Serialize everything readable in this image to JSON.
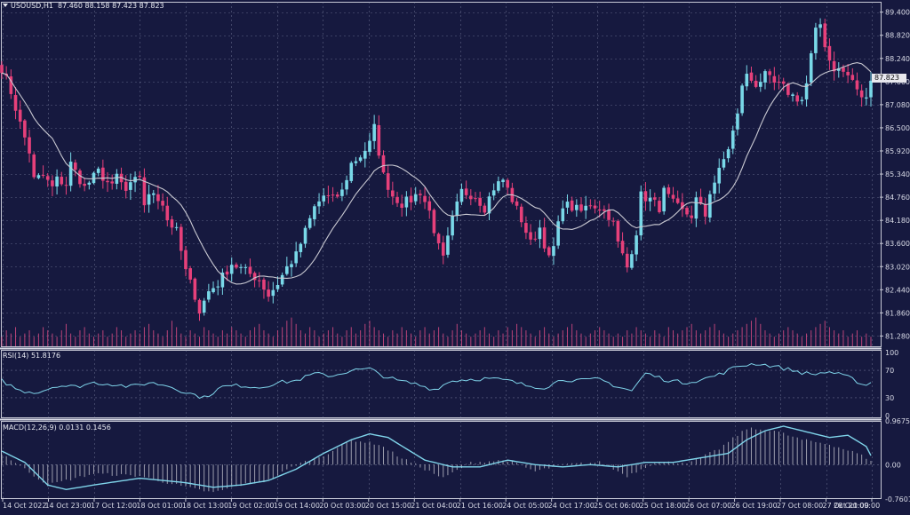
{
  "chart_data": {
    "type": "candlestick",
    "symbol": "USOUSD",
    "timeframe": "H1",
    "ohlc_readout": {
      "open": "87.460",
      "high": "88.158",
      "low": "87.423",
      "close": "87.823"
    },
    "current_price_label": "87.823",
    "price_axis": {
      "ticks": [
        "89.400",
        "88.820",
        "88.240",
        "87.660",
        "87.080",
        "86.500",
        "85.920",
        "85.340",
        "84.760",
        "84.180",
        "83.600",
        "83.020",
        "82.440",
        "81.860",
        "81.280"
      ],
      "range": [
        81.0,
        89.66
      ]
    },
    "time_axis": {
      "labels": [
        "14 Oct 2022",
        "14 Oct 23:00",
        "17 Oct 12:00",
        "18 Oct 01:00",
        "18 Oct 13:00",
        "19 Oct 02:00",
        "19 Oct 14:00",
        "20 Oct 03:00",
        "20 Oct 15:00",
        "21 Oct 04:00",
        "21 Oct 16:00",
        "24 Oct 05:00",
        "24 Oct 17:00",
        "25 Oct 06:00",
        "25 Oct 18:00",
        "26 Oct 07:00",
        "26 Oct 19:00",
        "27 Oct 08:00",
        "27 Oct 20:00",
        "28 Oct 09:00"
      ]
    },
    "close_path": [
      [
        0,
        88.0
      ],
      [
        2,
        87.4
      ],
      [
        4,
        86.6
      ],
      [
        6,
        85.9
      ],
      [
        7,
        85.2
      ],
      [
        9,
        85.3
      ],
      [
        11,
        85.0
      ],
      [
        12,
        85.2
      ],
      [
        14,
        85.1
      ],
      [
        15,
        85.6
      ],
      [
        18,
        85.0
      ],
      [
        21,
        85.4
      ],
      [
        24,
        85.0
      ],
      [
        25,
        85.3
      ],
      [
        27,
        84.9
      ],
      [
        30,
        85.3
      ],
      [
        31,
        84.6
      ],
      [
        33,
        84.9
      ],
      [
        35,
        84.6
      ],
      [
        36,
        84.2
      ],
      [
        38,
        83.9
      ],
      [
        40,
        82.9
      ],
      [
        42,
        82.3
      ],
      [
        43,
        81.9
      ],
      [
        45,
        82.4
      ],
      [
        47,
        82.6
      ],
      [
        50,
        83.1
      ],
      [
        53,
        82.9
      ],
      [
        56,
        82.7
      ],
      [
        58,
        82.3
      ],
      [
        60,
        82.6
      ],
      [
        62,
        83.0
      ],
      [
        64,
        83.3
      ],
      [
        66,
        83.9
      ],
      [
        68,
        84.5
      ],
      [
        70,
        84.8
      ],
      [
        72,
        84.7
      ],
      [
        74,
        84.9
      ],
      [
        76,
        85.6
      ],
      [
        78,
        85.8
      ],
      [
        80,
        86.1
      ],
      [
        81,
        86.5
      ],
      [
        83,
        85.3
      ],
      [
        85,
        84.8
      ],
      [
        87,
        84.6
      ],
      [
        89,
        84.7
      ],
      [
        91,
        84.9
      ],
      [
        93,
        84.4
      ],
      [
        95,
        83.5
      ],
      [
        96,
        83.2
      ],
      [
        98,
        84.2
      ],
      [
        100,
        84.9
      ],
      [
        103,
        84.8
      ],
      [
        105,
        84.5
      ],
      [
        107,
        85.0
      ],
      [
        109,
        85.2
      ],
      [
        111,
        84.7
      ],
      [
        113,
        84.2
      ],
      [
        115,
        83.6
      ],
      [
        117,
        84.0
      ],
      [
        119,
        83.2
      ],
      [
        120,
        83.5
      ],
      [
        122,
        84.6
      ],
      [
        124,
        84.5
      ],
      [
        126,
        84.4
      ],
      [
        128,
        84.6
      ],
      [
        130,
        84.5
      ],
      [
        132,
        84.3
      ],
      [
        133,
        84.1
      ],
      [
        134,
        83.6
      ],
      [
        136,
        83.0
      ],
      [
        138,
        83.9
      ],
      [
        139,
        84.8
      ],
      [
        141,
        84.7
      ],
      [
        143,
        84.5
      ],
      [
        144,
        84.9
      ],
      [
        146,
        84.6
      ],
      [
        148,
        84.4
      ],
      [
        150,
        84.3
      ],
      [
        151,
        84.7
      ],
      [
        153,
        84.3
      ],
      [
        154,
        84.9
      ],
      [
        156,
        85.4
      ],
      [
        158,
        86.0
      ],
      [
        160,
        86.8
      ],
      [
        161,
        87.6
      ],
      [
        162,
        87.8
      ],
      [
        164,
        87.6
      ],
      [
        166,
        87.8
      ],
      [
        168,
        87.6
      ],
      [
        170,
        87.5
      ],
      [
        172,
        87.3
      ],
      [
        174,
        87.2
      ],
      [
        175,
        87.6
      ],
      [
        176,
        88.3
      ],
      [
        177,
        88.9
      ],
      [
        178,
        89.1
      ],
      [
        179,
        88.6
      ],
      [
        180,
        88.2
      ],
      [
        181,
        88.0
      ],
      [
        183,
        87.9
      ],
      [
        185,
        87.7
      ],
      [
        186,
        87.4
      ],
      [
        188,
        87.2
      ],
      [
        189,
        87.8
      ]
    ],
    "volume_series": [
      3,
      5,
      4,
      6,
      3,
      4,
      5,
      3,
      4,
      6,
      5,
      4,
      3,
      5,
      7,
      4,
      3,
      5,
      6,
      4,
      3,
      4,
      5,
      3,
      4,
      6,
      5,
      3,
      4,
      5,
      4,
      6,
      7,
      5,
      4,
      3,
      5,
      8,
      6,
      4,
      3,
      5,
      4,
      3,
      6,
      5,
      4,
      3,
      5,
      4,
      6,
      5,
      4,
      3,
      5,
      6,
      7,
      5,
      4,
      3,
      5,
      6,
      8,
      9,
      7,
      5,
      4,
      6,
      5,
      3,
      4,
      5,
      6,
      4,
      3,
      5,
      6,
      4,
      5,
      7,
      8,
      6,
      5,
      4,
      3,
      5,
      4,
      6,
      5,
      4,
      3,
      5,
      6,
      4,
      5,
      6,
      4,
      3,
      5,
      7,
      5,
      4,
      3,
      4,
      5,
      6,
      4,
      3,
      5,
      4,
      6,
      5,
      7,
      6,
      5,
      4,
      3,
      5,
      6,
      4,
      3,
      4,
      5,
      6,
      7,
      5,
      4,
      3,
      4,
      5,
      6,
      5,
      4,
      3,
      4,
      3,
      5,
      4,
      6,
      5,
      4,
      3,
      5,
      4,
      3,
      6,
      5,
      4,
      5,
      6,
      7,
      5,
      4,
      5,
      6,
      7,
      5,
      4,
      3,
      4,
      5,
      6,
      7,
      8,
      9,
      7,
      5,
      4,
      3,
      4,
      5,
      6,
      5,
      4,
      3,
      4,
      5,
      6,
      7,
      8,
      6,
      5,
      4,
      5,
      3,
      4,
      5,
      3,
      4,
      3
    ],
    "rsi": {
      "header": "RSI(14) 51.8176",
      "levels": [
        "100",
        "70",
        "30",
        "0"
      ],
      "values": [
        [
          0,
          55
        ],
        [
          4,
          40
        ],
        [
          8,
          38
        ],
        [
          12,
          48
        ],
        [
          16,
          46
        ],
        [
          20,
          52
        ],
        [
          24,
          50
        ],
        [
          28,
          46
        ],
        [
          32,
          52
        ],
        [
          36,
          48
        ],
        [
          40,
          38
        ],
        [
          44,
          30
        ],
        [
          48,
          46
        ],
        [
          52,
          48
        ],
        [
          56,
          45
        ],
        [
          60,
          52
        ],
        [
          64,
          55
        ],
        [
          68,
          65
        ],
        [
          72,
          62
        ],
        [
          76,
          70
        ],
        [
          80,
          72
        ],
        [
          83,
          62
        ],
        [
          86,
          55
        ],
        [
          90,
          50
        ],
        [
          94,
          42
        ],
        [
          98,
          55
        ],
        [
          102,
          57
        ],
        [
          106,
          58
        ],
        [
          110,
          55
        ],
        [
          114,
          48
        ],
        [
          118,
          45
        ],
        [
          122,
          57
        ],
        [
          126,
          55
        ],
        [
          130,
          57
        ],
        [
          134,
          46
        ],
        [
          137,
          40
        ],
        [
          140,
          66
        ],
        [
          144,
          57
        ],
        [
          148,
          52
        ],
        [
          152,
          56
        ],
        [
          156,
          64
        ],
        [
          160,
          76
        ],
        [
          164,
          80
        ],
        [
          168,
          76
        ],
        [
          172,
          70
        ],
        [
          176,
          64
        ],
        [
          180,
          68
        ],
        [
          184,
          60
        ],
        [
          188,
          48
        ],
        [
          189,
          52
        ]
      ]
    },
    "macd": {
      "header": "MACD(12,26,9) 0.0131 0.1456",
      "levels": [
        "0.9675",
        "0.00",
        "-0.7601"
      ],
      "range": [
        -0.7601,
        0.9675
      ],
      "histogram": [
        [
          0,
          0.25
        ],
        [
          10,
          -0.45
        ],
        [
          20,
          -0.2
        ],
        [
          30,
          -0.25
        ],
        [
          40,
          -0.5
        ],
        [
          46,
          -0.62
        ],
        [
          52,
          -0.45
        ],
        [
          58,
          -0.35
        ],
        [
          64,
          0.0
        ],
        [
          70,
          0.2
        ],
        [
          76,
          0.55
        ],
        [
          82,
          0.45
        ],
        [
          86,
          0.2
        ],
        [
          90,
          0.0
        ],
        [
          96,
          -0.3
        ],
        [
          102,
          0.05
        ],
        [
          110,
          0.1
        ],
        [
          116,
          -0.15
        ],
        [
          122,
          0.0
        ],
        [
          130,
          0.05
        ],
        [
          136,
          -0.25
        ],
        [
          142,
          0.05
        ],
        [
          150,
          0.05
        ],
        [
          156,
          0.35
        ],
        [
          162,
          0.8
        ],
        [
          168,
          0.75
        ],
        [
          174,
          0.55
        ],
        [
          180,
          0.45
        ],
        [
          186,
          0.25
        ],
        [
          189,
          0.1
        ]
      ],
      "signal": [
        [
          0,
          0.3
        ],
        [
          5,
          0.05
        ],
        [
          10,
          -0.45
        ],
        [
          14,
          -0.55
        ],
        [
          20,
          -0.45
        ],
        [
          30,
          -0.3
        ],
        [
          40,
          -0.4
        ],
        [
          46,
          -0.5
        ],
        [
          52,
          -0.45
        ],
        [
          58,
          -0.35
        ],
        [
          64,
          -0.1
        ],
        [
          70,
          0.25
        ],
        [
          76,
          0.55
        ],
        [
          80,
          0.68
        ],
        [
          84,
          0.6
        ],
        [
          88,
          0.35
        ],
        [
          92,
          0.1
        ],
        [
          98,
          -0.05
        ],
        [
          104,
          -0.05
        ],
        [
          110,
          0.1
        ],
        [
          116,
          0.0
        ],
        [
          122,
          -0.05
        ],
        [
          128,
          0.0
        ],
        [
          134,
          -0.05
        ],
        [
          140,
          0.05
        ],
        [
          146,
          0.05
        ],
        [
          152,
          0.15
        ],
        [
          158,
          0.25
        ],
        [
          162,
          0.55
        ],
        [
          166,
          0.75
        ],
        [
          170,
          0.85
        ],
        [
          174,
          0.75
        ],
        [
          180,
          0.6
        ],
        [
          184,
          0.65
        ],
        [
          188,
          0.4
        ],
        [
          189,
          0.2
        ]
      ]
    },
    "grid": true,
    "colors": {
      "bull": "#79d8e8",
      "bear": "#e6407a",
      "ma": "#c9c9d2",
      "rsi": "#7fd4ea",
      "macd_line": "#7fd4ea",
      "macd_hist": "#c9c9d2",
      "volume": "#d64b83"
    }
  }
}
